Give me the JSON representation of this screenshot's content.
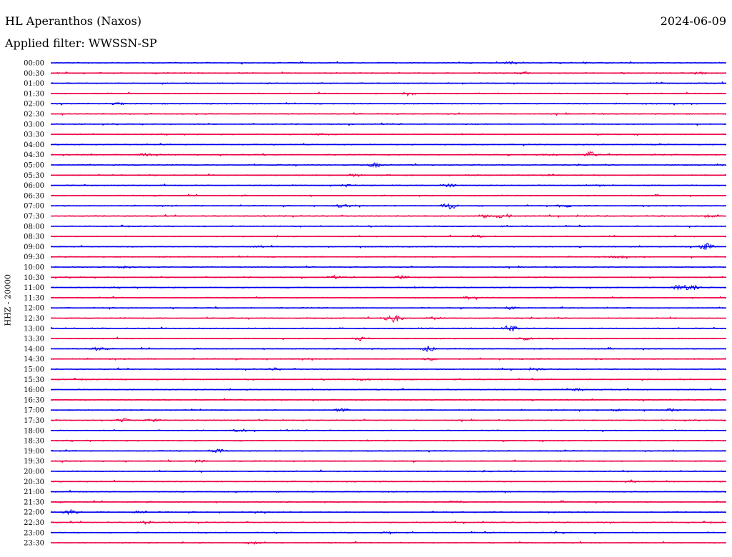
{
  "header": {
    "station": "HL Aperanthos (Naxos)",
    "date": "2024-06-09",
    "filter": "Applied filter: WWSSN-SP"
  },
  "chart_data": {
    "type": "line",
    "title": "HL Aperanthos (Naxos)",
    "ylabel": "HHZ - 20000",
    "colors": {
      "even_rows": "#0000ee",
      "odd_rows": "#ee0044"
    },
    "rows": [
      {
        "label": "00:00",
        "events": [
          {
            "t": 0.68,
            "a": 0.4
          }
        ]
      },
      {
        "label": "00:30",
        "events": [
          {
            "t": 0.7,
            "a": 0.3
          },
          {
            "t": 0.96,
            "a": 0.3
          }
        ]
      },
      {
        "label": "01:00",
        "events": []
      },
      {
        "label": "01:30",
        "events": [
          {
            "t": 0.53,
            "a": 0.4
          }
        ]
      },
      {
        "label": "02:00",
        "events": [
          {
            "t": 0.1,
            "a": 0.3
          }
        ]
      },
      {
        "label": "02:30",
        "events": []
      },
      {
        "label": "03:00",
        "events": []
      },
      {
        "label": "03:30",
        "events": [
          {
            "t": 0.4,
            "a": 0.3
          }
        ]
      },
      {
        "label": "04:00",
        "events": []
      },
      {
        "label": "04:30",
        "events": [
          {
            "t": 0.14,
            "a": 0.3
          },
          {
            "t": 0.74,
            "a": 0.3
          },
          {
            "t": 0.8,
            "a": 1.0
          }
        ]
      },
      {
        "label": "05:00",
        "events": [
          {
            "t": 0.48,
            "a": 0.6
          }
        ]
      },
      {
        "label": "05:30",
        "events": [
          {
            "t": 0.45,
            "a": 0.3
          },
          {
            "t": 0.74,
            "a": 0.3
          }
        ]
      },
      {
        "label": "06:00",
        "events": [
          {
            "t": 0.44,
            "a": 0.3
          },
          {
            "t": 0.59,
            "a": 0.4
          }
        ]
      },
      {
        "label": "06:30",
        "events": []
      },
      {
        "label": "07:00",
        "events": [
          {
            "t": 0.43,
            "a": 0.4
          },
          {
            "t": 0.59,
            "a": 1.0
          },
          {
            "t": 0.76,
            "a": 0.4
          }
        ]
      },
      {
        "label": "07:30",
        "events": [
          {
            "t": 0.64,
            "a": 0.4
          },
          {
            "t": 0.67,
            "a": 0.8
          },
          {
            "t": 0.98,
            "a": 0.4
          }
        ]
      },
      {
        "label": "08:00",
        "events": []
      },
      {
        "label": "08:30",
        "events": [
          {
            "t": 0.63,
            "a": 0.4
          }
        ]
      },
      {
        "label": "09:00",
        "events": [
          {
            "t": 0.31,
            "a": 0.3
          },
          {
            "t": 0.97,
            "a": 1.0
          }
        ]
      },
      {
        "label": "09:30",
        "events": [
          {
            "t": 0.84,
            "a": 0.3
          }
        ]
      },
      {
        "label": "10:00",
        "events": [
          {
            "t": 0.11,
            "a": 0.3
          }
        ]
      },
      {
        "label": "10:30",
        "events": [
          {
            "t": 0.42,
            "a": 0.3
          },
          {
            "t": 0.52,
            "a": 0.5
          }
        ]
      },
      {
        "label": "11:00",
        "events": [
          {
            "t": 0.93,
            "a": 0.6
          },
          {
            "t": 0.95,
            "a": 0.9
          }
        ]
      },
      {
        "label": "11:30",
        "events": [
          {
            "t": 0.62,
            "a": 0.3
          }
        ]
      },
      {
        "label": "12:00",
        "events": [
          {
            "t": 0.68,
            "a": 0.5
          }
        ]
      },
      {
        "label": "12:30",
        "events": [
          {
            "t": 0.5,
            "a": 0.5
          },
          {
            "t": 0.51,
            "a": 1.0
          },
          {
            "t": 0.57,
            "a": 0.4
          }
        ]
      },
      {
        "label": "13:00",
        "events": [
          {
            "t": 0.68,
            "a": 1.0
          }
        ]
      },
      {
        "label": "13:30",
        "events": [
          {
            "t": 0.46,
            "a": 0.6
          },
          {
            "t": 0.7,
            "a": 0.4
          }
        ]
      },
      {
        "label": "14:00",
        "events": [
          {
            "t": 0.07,
            "a": 0.4
          },
          {
            "t": 0.56,
            "a": 0.8
          }
        ]
      },
      {
        "label": "14:30",
        "events": [
          {
            "t": 0.56,
            "a": 0.3
          }
        ]
      },
      {
        "label": "15:00",
        "events": [
          {
            "t": 0.33,
            "a": 0.3
          },
          {
            "t": 0.72,
            "a": 0.3
          }
        ]
      },
      {
        "label": "15:30",
        "events": [
          {
            "t": 0.46,
            "a": 0.3
          }
        ]
      },
      {
        "label": "16:00",
        "events": [
          {
            "t": 0.78,
            "a": 0.3
          }
        ]
      },
      {
        "label": "16:30",
        "events": []
      },
      {
        "label": "17:00",
        "events": [
          {
            "t": 0.43,
            "a": 0.4
          },
          {
            "t": 0.84,
            "a": 0.4
          },
          {
            "t": 0.92,
            "a": 0.4
          }
        ]
      },
      {
        "label": "17:30",
        "events": [
          {
            "t": 0.11,
            "a": 0.7
          },
          {
            "t": 0.15,
            "a": 0.4
          }
        ]
      },
      {
        "label": "18:00",
        "events": [
          {
            "t": 0.28,
            "a": 0.4
          }
        ]
      },
      {
        "label": "18:30",
        "events": []
      },
      {
        "label": "19:00",
        "events": [
          {
            "t": 0.25,
            "a": 0.5
          }
        ]
      },
      {
        "label": "19:30",
        "events": [
          {
            "t": 0.22,
            "a": 0.3
          }
        ]
      },
      {
        "label": "20:00",
        "events": []
      },
      {
        "label": "20:30",
        "events": [
          {
            "t": 0.86,
            "a": 0.3
          }
        ]
      },
      {
        "label": "21:00",
        "events": []
      },
      {
        "label": "21:30",
        "events": [
          {
            "t": 0.6,
            "a": 0.3
          }
        ]
      },
      {
        "label": "22:00",
        "events": [
          {
            "t": 0.03,
            "a": 0.6
          },
          {
            "t": 0.13,
            "a": 0.3
          }
        ]
      },
      {
        "label": "22:30",
        "events": [
          {
            "t": 0.14,
            "a": 0.4
          }
        ]
      },
      {
        "label": "23:00",
        "events": [
          {
            "t": 0.5,
            "a": 0.3
          },
          {
            "t": 0.75,
            "a": 0.3
          }
        ]
      },
      {
        "label": "23:30",
        "events": [
          {
            "t": 0.3,
            "a": 0.3
          }
        ]
      }
    ],
    "grid": false,
    "legend": "none"
  }
}
